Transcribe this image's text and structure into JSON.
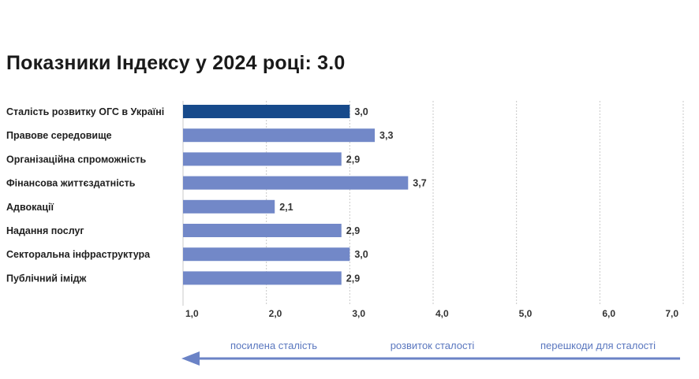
{
  "title": "Показники Індексу у 2024 році: 3.0",
  "colors": {
    "highlight": "#174a8b",
    "bar": "#7288c8",
    "arrow": "#6b83c6",
    "grid": "#c8c8c8"
  },
  "chart_data": {
    "type": "bar",
    "orientation": "horizontal",
    "categories": [
      "Сталість розвитку ОГС в Україні",
      "Правове середовище",
      "Організаційна спроможність",
      "Фінансова життєздатність",
      "Адвокації",
      "Надання послуг",
      "Секторальна інфраструктура",
      "Публічний імідж"
    ],
    "values": [
      3.0,
      3.3,
      2.9,
      3.7,
      2.1,
      2.9,
      3.0,
      2.9
    ],
    "value_labels": [
      "3,0",
      "3,3",
      "2,9",
      "3,7",
      "2,1",
      "2,9",
      "3,0",
      "2,9"
    ],
    "highlight_index": 0,
    "xlim": [
      1,
      7
    ],
    "xticks": [
      "1,0",
      "2,0",
      "3,0",
      "4,0",
      "5,0",
      "6,0",
      "7,0"
    ],
    "grid": "vertical dotted"
  },
  "scale_labels": [
    "посилена сталість",
    "розвиток сталості",
    "перешкоди для сталості"
  ]
}
